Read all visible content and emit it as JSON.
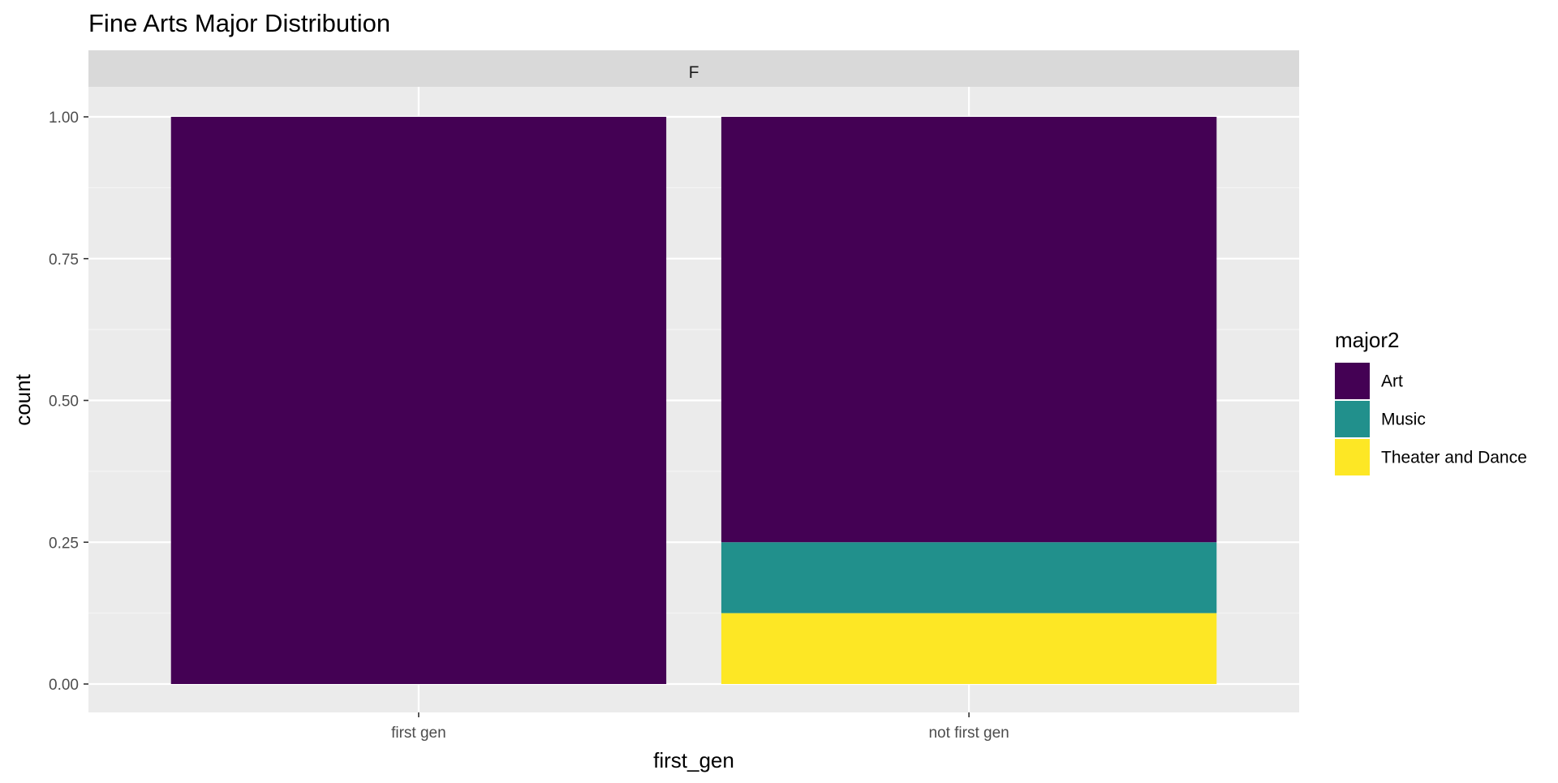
{
  "chart_data": {
    "type": "bar",
    "stacked": true,
    "title": "Fine Arts Major Distribution",
    "facet_label": "F",
    "xlabel": "first_gen",
    "ylabel": "count",
    "categories": [
      "first gen",
      "not first gen"
    ],
    "ylim": [
      0,
      1.0
    ],
    "yticks": [
      0,
      0.25,
      0.5,
      0.75,
      1.0
    ],
    "ytick_labels": [
      "0.00",
      "0.25",
      "0.50",
      "0.75",
      "1.00"
    ],
    "grid": true,
    "legend": {
      "title": "major2",
      "position": "right"
    },
    "series": [
      {
        "name": "Theater and Dance",
        "color": "#FDE725",
        "values": [
          0,
          0.125
        ]
      },
      {
        "name": "Music",
        "color": "#21908C",
        "values": [
          0,
          0.125
        ]
      },
      {
        "name": "Art",
        "color": "#440154",
        "values": [
          1.0,
          0.75
        ]
      }
    ],
    "legend_order": [
      "Art",
      "Music",
      "Theater and Dance"
    ]
  },
  "colors": {
    "panel_background": "#EBEBEB",
    "strip_background": "#D9D9D9",
    "grid_major": "#FFFFFF",
    "grid_minor": "#F4F4F4",
    "axis_text": "#4D4D4D",
    "tick": "#333333",
    "text": "#000000"
  }
}
